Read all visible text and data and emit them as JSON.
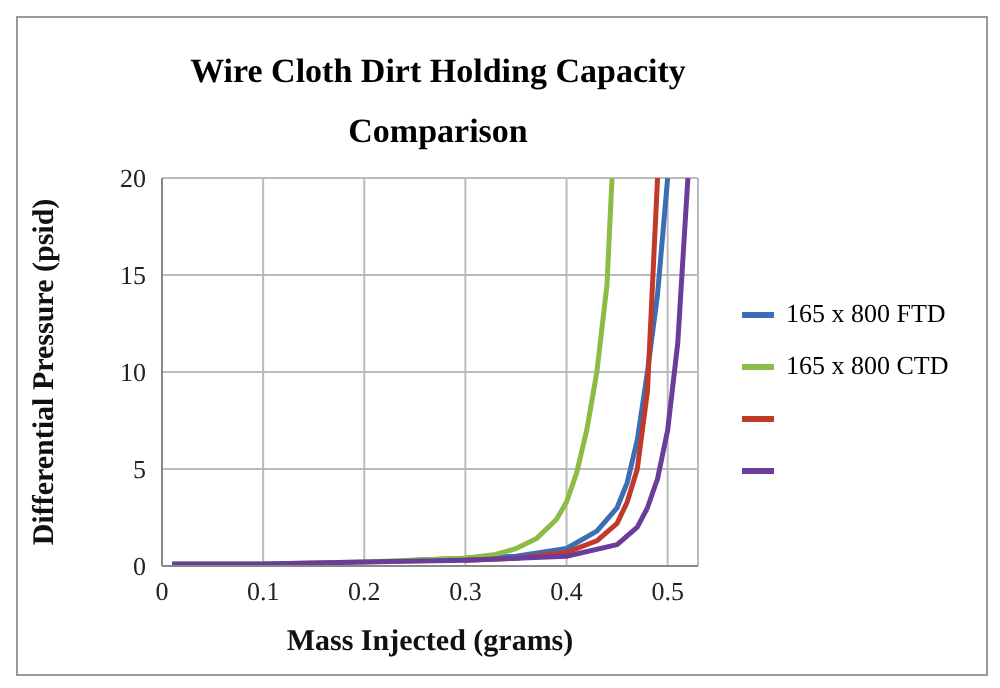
{
  "chart_data": {
    "type": "line",
    "title": "Wire Cloth Dirt Holding Capacity Comparison",
    "xlabel": "Mass Injected (grams)",
    "ylabel": "Differential Pressure (psid)",
    "xlim": [
      0,
      0.53
    ],
    "xticks": [
      0,
      0.1,
      0.2,
      0.3,
      0.4,
      0.5
    ],
    "ylim": [
      0,
      20
    ],
    "yticks": [
      0,
      5,
      10,
      15,
      20
    ],
    "grid": true,
    "legend": "right",
    "marker": "none",
    "line_style": "solid",
    "series": [
      {
        "name": "165 x 800 FTD",
        "color": "#3a6fb5",
        "x": [
          0.25,
          0.3,
          0.35,
          0.4,
          0.43,
          0.45,
          0.46,
          0.47,
          0.48,
          0.49,
          0.5
        ],
        "values": [
          0.3,
          0.4,
          0.5,
          0.9,
          1.8,
          3,
          4.3,
          6.5,
          10,
          14,
          20
        ]
      },
      {
        "name": "165 x 800 CTD",
        "color": "#8dbb45",
        "x": [
          0.01,
          0.1,
          0.2,
          0.3,
          0.33,
          0.35,
          0.37,
          0.39,
          0.4,
          0.41,
          0.42,
          0.43,
          0.44,
          0.445
        ],
        "values": [
          0.1,
          0.1,
          0.2,
          0.4,
          0.6,
          0.9,
          1.4,
          2.4,
          3.3,
          4.8,
          7,
          10,
          14.5,
          20
        ]
      },
      {
        "color": "#c0392b",
        "x": [
          0.3,
          0.35,
          0.4,
          0.43,
          0.45,
          0.46,
          0.47,
          0.48,
          0.49
        ],
        "values": [
          0.3,
          0.4,
          0.7,
          1.3,
          2.2,
          3.3,
          5,
          9,
          20
        ]
      },
      {
        "color": "#6a3d9a",
        "x": [
          0.01,
          0.1,
          0.2,
          0.3,
          0.35,
          0.4,
          0.45,
          0.47,
          0.48,
          0.49,
          0.5,
          0.51,
          0.52
        ],
        "values": [
          0.1,
          0.1,
          0.2,
          0.3,
          0.4,
          0.5,
          1.1,
          2,
          3,
          4.5,
          7,
          11.5,
          20
        ]
      }
    ]
  }
}
